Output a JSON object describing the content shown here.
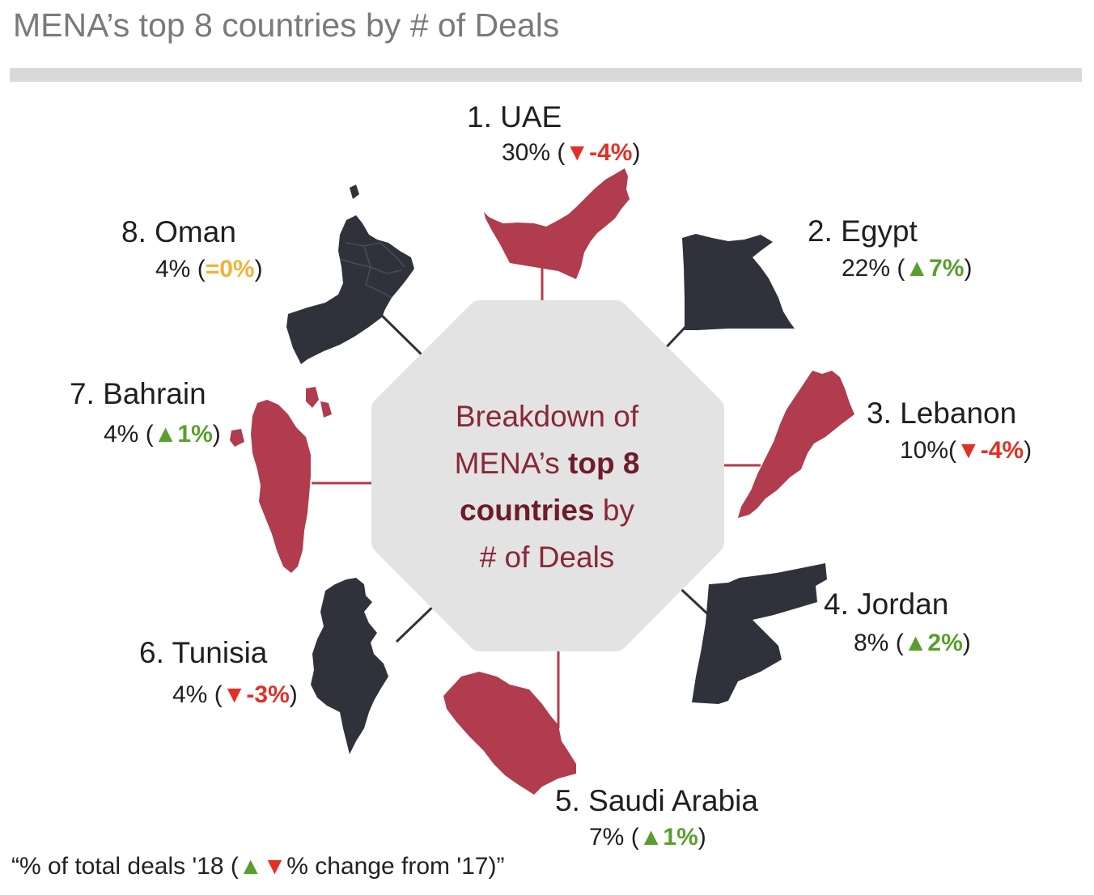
{
  "title": "MENA’s top 8 countries by # of Deals",
  "center": {
    "line1": "Breakdown of",
    "line2_plain": "MENA’s ",
    "line2_bold": "top 8",
    "line3_bold": "countries",
    "line3_plain": " by",
    "line4": "# of Deals"
  },
  "colors": {
    "highlight": "#b03c4e",
    "dark": "#30323b",
    "up": "#5a9e2f",
    "down": "#e03127",
    "flat": "#f0b23c"
  },
  "countries": [
    {
      "name": "1. UAE",
      "share": "30%",
      "open": " (",
      "arrow": "▼",
      "change": "-4%",
      "close": ")",
      "trend": "down"
    },
    {
      "name": "2. Egypt",
      "share": "22%",
      "open": " (",
      "arrow": "▲",
      "change": "7%",
      "close": ")",
      "trend": "up"
    },
    {
      "name": "3. Lebanon",
      "share": "10%",
      "open": "(",
      "arrow": "▼",
      "change": "-4%",
      "close": ")",
      "trend": "down"
    },
    {
      "name": "4. Jordan",
      "share": "8%",
      "open": " (",
      "arrow": "▲",
      "change": "2%",
      "close": ")",
      "trend": "up"
    },
    {
      "name": "5. Saudi Arabia",
      "share": "7%",
      "open": " (",
      "arrow": "▲",
      "change": "1%",
      "close": ")",
      "trend": "up"
    },
    {
      "name": "6. Tunisia",
      "share": "4%",
      "open": " (",
      "arrow": "▼",
      "change": "-3%",
      "close": ")",
      "trend": "down"
    },
    {
      "name": "7. Bahrain",
      "share": "4%",
      "open": " (",
      "arrow": "▲",
      "change": "1%",
      "close": ")",
      "trend": "up"
    },
    {
      "name": "8. Oman",
      "share": "4%",
      "open": " (",
      "arrow": "",
      "change": "=0%",
      "close": ")",
      "trend": "flat"
    }
  ],
  "footnote": {
    "before": "“% of total deals '18 (",
    "up_arrow": "▲",
    "down_arrow": "▼",
    "after": "% change from '17)”"
  }
}
